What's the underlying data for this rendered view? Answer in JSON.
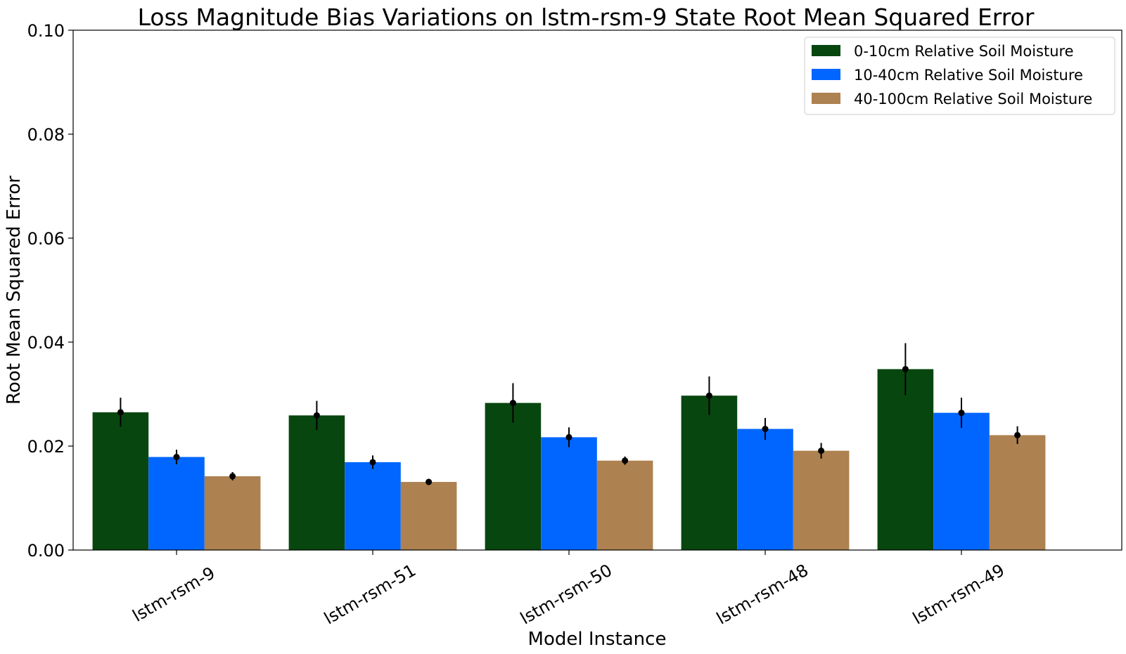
{
  "chart_data": {
    "type": "bar",
    "title": "Loss Magnitude Bias Variations on lstm-rsm-9 State Root Mean Squared Error",
    "xlabel": "Model Instance",
    "ylabel": "Root Mean Squared Error",
    "ylim": [
      0,
      0.1
    ],
    "yticks": [
      "0.00",
      "0.02",
      "0.04",
      "0.06",
      "0.08",
      "0.10"
    ],
    "categories": [
      "lstm-rsm-9",
      "lstm-rsm-51",
      "lstm-rsm-50",
      "lstm-rsm-48",
      "lstm-rsm-49"
    ],
    "series": [
      {
        "name": "0-10cm Relative Soil Moisture",
        "color": "#08460f",
        "values": [
          0.0265,
          0.0259,
          0.0283,
          0.0297,
          0.0348
        ],
        "errors": [
          0.0028,
          0.0028,
          0.0038,
          0.0037,
          0.005
        ]
      },
      {
        "name": "10-40cm Relative Soil Moisture",
        "color": "#0066ff",
        "values": [
          0.0179,
          0.0169,
          0.0217,
          0.0233,
          0.0264
        ],
        "errors": [
          0.0014,
          0.0013,
          0.0019,
          0.0021,
          0.0029
        ]
      },
      {
        "name": "40-100cm Relative Soil Moisture",
        "color": "#ad8150",
        "values": [
          0.0142,
          0.0131,
          0.0172,
          0.0191,
          0.0221
        ],
        "errors": [
          0.0008,
          0.0006,
          0.0008,
          0.0015,
          0.0017
        ]
      }
    ],
    "grid": false,
    "legend_position": "top-right"
  }
}
